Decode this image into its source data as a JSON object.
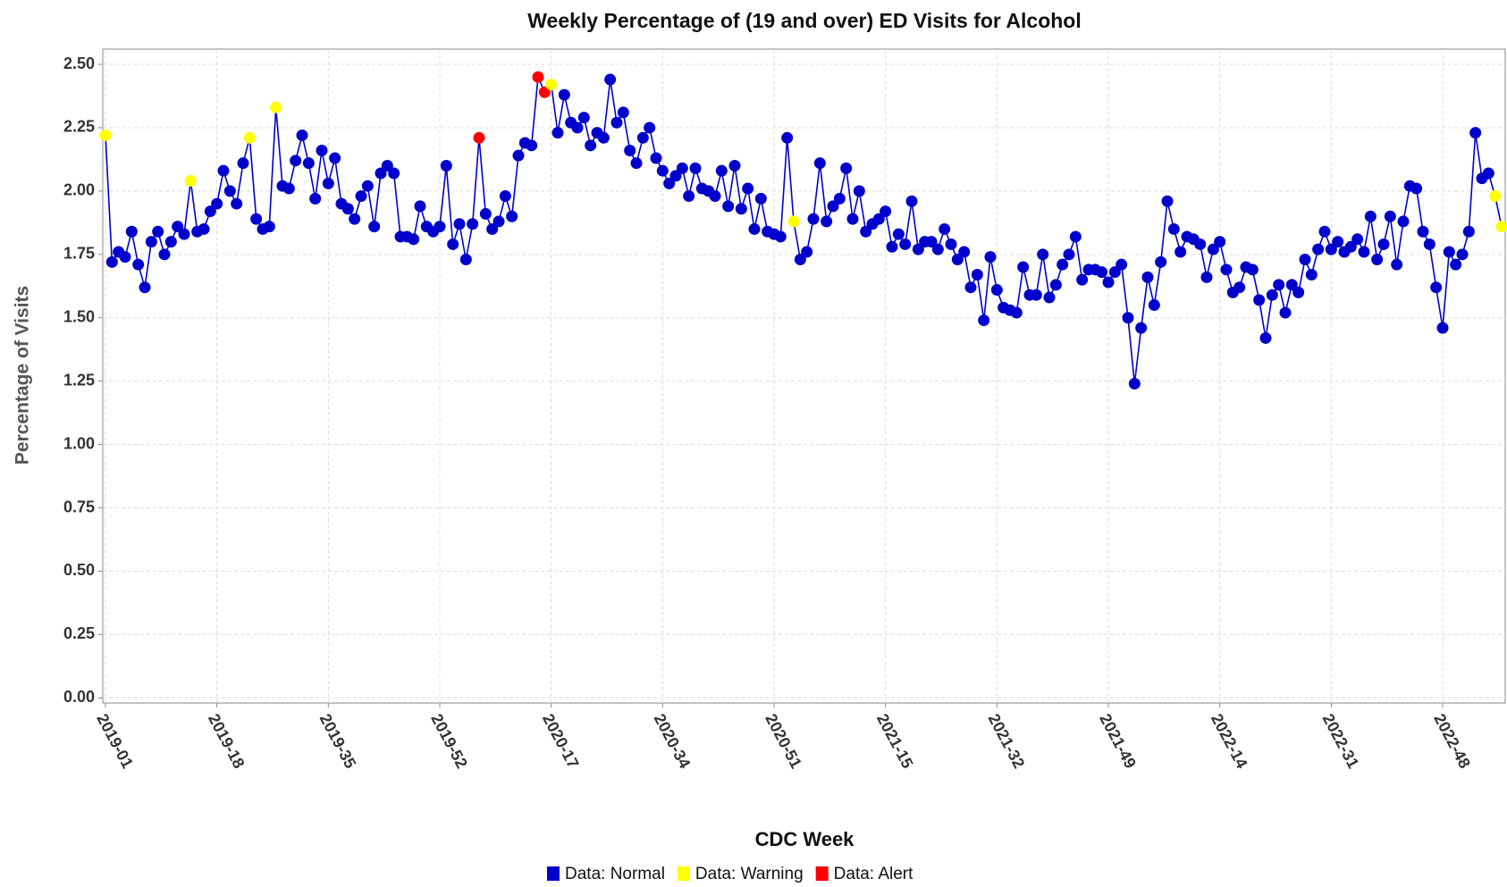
{
  "chart_data": {
    "type": "line",
    "title": "Weekly Percentage of (19 and over) ED Visits for Alcohol",
    "x_label": "CDC Week",
    "y_label": "Percentage of Visits",
    "categories": [
      "2019-01",
      null,
      null,
      null,
      null,
      null,
      null,
      null,
      null,
      null,
      null,
      null,
      null,
      null,
      null,
      null,
      null,
      "2019-18",
      null,
      null,
      null,
      null,
      null,
      null,
      null,
      null,
      null,
      null,
      null,
      null,
      null,
      null,
      null,
      null,
      "2019-35",
      null,
      null,
      null,
      null,
      null,
      null,
      null,
      null,
      null,
      null,
      null,
      null,
      null,
      null,
      null,
      null,
      "2019-52",
      null,
      null,
      null,
      null,
      null,
      null,
      null,
      null,
      null,
      null,
      null,
      null,
      null,
      null,
      null,
      null,
      "2020-17",
      null,
      null,
      null,
      null,
      null,
      null,
      null,
      null,
      null,
      null,
      null,
      null,
      null,
      null,
      null,
      null,
      "2020-34",
      null,
      null,
      null,
      null,
      null,
      null,
      null,
      null,
      null,
      null,
      null,
      null,
      null,
      null,
      null,
      null,
      "2020-51",
      null,
      null,
      null,
      null,
      null,
      null,
      null,
      null,
      null,
      null,
      null,
      null,
      null,
      null,
      null,
      null,
      "2021-15",
      null,
      null,
      null,
      null,
      null,
      null,
      null,
      null,
      null,
      null,
      null,
      null,
      null,
      null,
      null,
      null,
      "2021-32",
      null,
      null,
      null,
      null,
      null,
      null,
      null,
      null,
      null,
      null,
      null,
      null,
      null,
      null,
      null,
      null,
      "2021-49",
      null,
      null,
      null,
      null,
      null,
      null,
      null,
      null,
      null,
      null,
      null,
      null,
      null,
      null,
      null,
      null,
      "2022-14",
      null,
      null,
      null,
      null,
      null,
      null,
      null,
      null,
      null,
      null,
      null,
      null,
      null,
      null,
      null,
      null,
      "2022-31",
      null,
      null,
      null,
      null,
      null,
      null,
      null,
      null,
      null,
      null,
      null,
      null,
      null,
      null,
      null,
      null,
      "2022-48",
      null,
      null,
      null,
      null,
      null,
      null,
      null,
      null,
      null
    ],
    "values": [
      2.22,
      1.72,
      1.76,
      1.74,
      1.84,
      1.71,
      1.62,
      1.8,
      1.84,
      1.75,
      1.8,
      1.86,
      1.83,
      2.04,
      1.84,
      1.85,
      1.92,
      1.95,
      2.08,
      2.0,
      1.95,
      2.11,
      2.21,
      1.89,
      1.85,
      1.86,
      2.33,
      2.02,
      2.01,
      2.12,
      2.22,
      2.11,
      1.97,
      2.16,
      2.03,
      2.13,
      1.95,
      1.93,
      1.89,
      1.98,
      2.02,
      1.86,
      2.07,
      2.1,
      2.07,
      1.82,
      1.82,
      1.81,
      1.94,
      1.86,
      1.84,
      1.86,
      2.1,
      1.79,
      1.87,
      1.73,
      1.87,
      2.21,
      1.91,
      1.85,
      1.88,
      1.98,
      1.9,
      2.14,
      2.19,
      2.18,
      2.45,
      2.39,
      2.42,
      2.23,
      2.38,
      2.27,
      2.25,
      2.29,
      2.18,
      2.23,
      2.21,
      2.44,
      2.27,
      2.31,
      2.16,
      2.11,
      2.21,
      2.25,
      2.13,
      2.08,
      2.03,
      2.06,
      2.09,
      1.98,
      2.09,
      2.01,
      2.0,
      1.98,
      2.08,
      1.94,
      2.1,
      1.93,
      2.01,
      1.85,
      1.97,
      1.84,
      1.83,
      1.82,
      2.21,
      1.88,
      1.73,
      1.76,
      1.89,
      2.11,
      1.88,
      1.94,
      1.97,
      2.09,
      1.89,
      2.0,
      1.84,
      1.87,
      1.89,
      1.92,
      1.78,
      1.83,
      1.79,
      1.96,
      1.77,
      1.8,
      1.8,
      1.77,
      1.85,
      1.79,
      1.73,
      1.76,
      1.62,
      1.67,
      1.49,
      1.74,
      1.61,
      1.54,
      1.53,
      1.52,
      1.7,
      1.59,
      1.59,
      1.75,
      1.58,
      1.63,
      1.71,
      1.75,
      1.82,
      1.65,
      1.69,
      1.69,
      1.68,
      1.64,
      1.68,
      1.71,
      1.5,
      1.24,
      1.46,
      1.66,
      1.55,
      1.72,
      1.96,
      1.85,
      1.76,
      1.82,
      1.81,
      1.79,
      1.66,
      1.77,
      1.8,
      1.69,
      1.6,
      1.62,
      1.7,
      1.69,
      1.57,
      1.42,
      1.59,
      1.63,
      1.52,
      1.63,
      1.6,
      1.73,
      1.67,
      1.77,
      1.84,
      1.77,
      1.8,
      1.76,
      1.78,
      1.81,
      1.76,
      1.9,
      1.73,
      1.79,
      1.9,
      1.71,
      1.88,
      2.02,
      2.01,
      1.84,
      1.79,
      1.62,
      1.46,
      1.76,
      1.71,
      1.75,
      1.84,
      2.23,
      2.05,
      2.07,
      1.98,
      1.86
    ],
    "line_color": "#0000cc",
    "levels": [
      {
        "name": "Data: Normal",
        "color": "#0000cc"
      },
      {
        "name": "Data: Warning",
        "color": "#ffff00"
      },
      {
        "name": "Data: Alert",
        "color": "#ff0000"
      }
    ],
    "point_levels": [
      1,
      0,
      0,
      0,
      0,
      0,
      0,
      0,
      0,
      0,
      0,
      0,
      0,
      1,
      0,
      0,
      0,
      0,
      0,
      0,
      0,
      0,
      1,
      0,
      0,
      0,
      1,
      0,
      0,
      0,
      0,
      0,
      0,
      0,
      0,
      0,
      0,
      0,
      0,
      0,
      0,
      0,
      0,
      0,
      0,
      0,
      0,
      0,
      0,
      0,
      0,
      0,
      0,
      0,
      0,
      0,
      0,
      2,
      0,
      0,
      0,
      0,
      0,
      0,
      0,
      0,
      2,
      2,
      1,
      0,
      0,
      0,
      0,
      0,
      0,
      0,
      0,
      0,
      0,
      0,
      0,
      0,
      0,
      0,
      0,
      0,
      0,
      0,
      0,
      0,
      0,
      0,
      0,
      0,
      0,
      0,
      0,
      0,
      0,
      0,
      0,
      0,
      0,
      0,
      0,
      1,
      0,
      0,
      0,
      0,
      0,
      0,
      0,
      0,
      0,
      0,
      0,
      0,
      0,
      0,
      0,
      0,
      0,
      0,
      0,
      0,
      0,
      0,
      0,
      0,
      0,
      0,
      0,
      0,
      0,
      0,
      0,
      0,
      0,
      0,
      0,
      0,
      0,
      0,
      0,
      0,
      0,
      0,
      0,
      0,
      0,
      0,
      0,
      0,
      0,
      0,
      0,
      0,
      0,
      0,
      0,
      0,
      0,
      0,
      0,
      0,
      0,
      0,
      0,
      0,
      0,
      0,
      0,
      0,
      0,
      0,
      0,
      0,
      0,
      0,
      0,
      0,
      0,
      0,
      0,
      0,
      0,
      0,
      0,
      0,
      0,
      0,
      0,
      0,
      0,
      0,
      0,
      0,
      0,
      0,
      0,
      0,
      0,
      0,
      0,
      0,
      0,
      0,
      0,
      0,
      0,
      0,
      1,
      1,
      1,
      0,
      0
    ],
    "ylim": [
      -0.02,
      2.56
    ],
    "yticks": [
      {
        "value": 0,
        "label": "0.00"
      },
      {
        "value": 0.25,
        "label": "0.25"
      },
      {
        "value": 0.5,
        "label": "0.50"
      },
      {
        "value": 0.75,
        "label": "0.75"
      },
      {
        "value": 1,
        "label": "1.00"
      },
      {
        "value": 1.25,
        "label": "1.25"
      },
      {
        "value": 1.5,
        "label": "1.50"
      },
      {
        "value": 1.75,
        "label": "1.75"
      },
      {
        "value": 2,
        "label": "2.00"
      },
      {
        "value": 2.25,
        "label": "2.25"
      },
      {
        "value": 2.5,
        "label": "2.50"
      }
    ],
    "grid": true
  }
}
